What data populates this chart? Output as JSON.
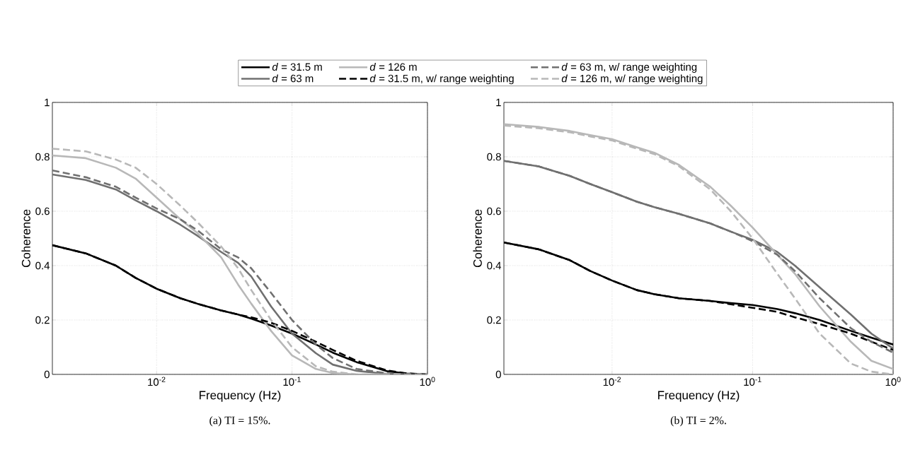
{
  "chart_data": [
    {
      "type": "line",
      "title": "(a) TI = 15%.",
      "xlabel": "Frequency (Hz)",
      "ylabel": "Coherence",
      "log": "x",
      "grid": true,
      "legend": "top",
      "marker": "none",
      "xlim": [
        0.0017,
        1
      ],
      "ylim": [
        0,
        1
      ],
      "xticks": [
        {
          "value": 0.01,
          "label": "10$^{-2}$"
        },
        {
          "value": 0.1,
          "label": "10$^{-1}$"
        },
        {
          "value": 1,
          "label": "10$^{0}$"
        }
      ],
      "yticks": [
        0,
        0.2,
        0.4,
        0.6,
        0.8,
        1
      ],
      "x": [
        0.0017,
        0.003,
        0.005,
        0.007,
        0.01,
        0.015,
        0.02,
        0.03,
        0.04,
        0.05,
        0.07,
        0.1,
        0.15,
        0.2,
        0.3,
        0.5,
        0.7,
        1
      ],
      "series": [
        {
          "name": "*d* = 31.5 m",
          "color": "#000000",
          "line_style": "solid",
          "values": [
            0.475,
            0.445,
            0.4,
            0.355,
            0.315,
            0.28,
            0.26,
            0.235,
            0.22,
            0.205,
            0.18,
            0.15,
            0.11,
            0.08,
            0.045,
            0.012,
            0.003,
            0
          ]
        },
        {
          "name": "*d* = 63 m",
          "color": "#707070",
          "line_style": "solid",
          "values": [
            0.735,
            0.715,
            0.68,
            0.64,
            0.6,
            0.55,
            0.51,
            0.45,
            0.41,
            0.36,
            0.25,
            0.15,
            0.078,
            0.036,
            0.013,
            0.002,
            0,
            0
          ]
        },
        {
          "name": "*d* = 126 m",
          "color": "#b8b8b8",
          "line_style": "solid",
          "values": [
            0.805,
            0.795,
            0.76,
            0.72,
            0.65,
            0.57,
            0.52,
            0.43,
            0.33,
            0.26,
            0.16,
            0.07,
            0.02,
            0.005,
            0,
            0,
            0,
            0
          ]
        },
        {
          "name": "*d* = 31.5 m, w/ range weighting",
          "color": "#000000",
          "line_style": "dashed",
          "values": [
            0.475,
            0.445,
            0.4,
            0.355,
            0.315,
            0.28,
            0.26,
            0.235,
            0.22,
            0.21,
            0.19,
            0.16,
            0.12,
            0.09,
            0.05,
            0.015,
            0.004,
            0
          ]
        },
        {
          "name": "*d* = 63 m, w/ range weighting",
          "color": "#707070",
          "line_style": "dashed",
          "values": [
            0.75,
            0.725,
            0.69,
            0.65,
            0.61,
            0.57,
            0.53,
            0.46,
            0.43,
            0.39,
            0.3,
            0.2,
            0.11,
            0.06,
            0.02,
            0.004,
            0,
            0
          ]
        },
        {
          "name": "*d* = 126 m, w/ range weighting",
          "color": "#b8b8b8",
          "line_style": "dashed",
          "values": [
            0.83,
            0.82,
            0.79,
            0.76,
            0.7,
            0.62,
            0.56,
            0.47,
            0.39,
            0.31,
            0.2,
            0.1,
            0.03,
            0.01,
            0,
            0,
            0,
            0
          ]
        }
      ]
    },
    {
      "type": "line",
      "title": "(b) TI = 2%.",
      "xlabel": "Frequency (Hz)",
      "ylabel": "Coherence",
      "log": "x",
      "grid": true,
      "marker": "none",
      "xlim": [
        0.0017,
        1
      ],
      "ylim": [
        0,
        1
      ],
      "xticks": [
        {
          "value": 0.01,
          "label": "10$^{-2}$"
        },
        {
          "value": 0.1,
          "label": "10$^{-1}$"
        },
        {
          "value": 1,
          "label": "10$^{0}$"
        }
      ],
      "yticks": [
        0,
        0.2,
        0.4,
        0.6,
        0.8,
        1
      ],
      "x": [
        0.0017,
        0.003,
        0.005,
        0.007,
        0.01,
        0.015,
        0.02,
        0.03,
        0.05,
        0.07,
        0.1,
        0.15,
        0.2,
        0.3,
        0.5,
        0.7,
        1
      ],
      "series": [
        {
          "color": "#000000",
          "line_style": "solid",
          "values": [
            0.485,
            0.46,
            0.42,
            0.38,
            0.345,
            0.31,
            0.295,
            0.28,
            0.27,
            0.262,
            0.255,
            0.24,
            0.225,
            0.2,
            0.16,
            0.135,
            0.11
          ]
        },
        {
          "color": "#707070",
          "line_style": "solid",
          "values": [
            0.785,
            0.765,
            0.73,
            0.7,
            0.67,
            0.635,
            0.615,
            0.59,
            0.555,
            0.525,
            0.495,
            0.45,
            0.4,
            0.32,
            0.22,
            0.15,
            0.095
          ]
        },
        {
          "color": "#b8b8b8",
          "line_style": "solid",
          "values": [
            0.92,
            0.91,
            0.895,
            0.88,
            0.865,
            0.835,
            0.815,
            0.77,
            0.69,
            0.62,
            0.54,
            0.44,
            0.37,
            0.25,
            0.12,
            0.05,
            0.02
          ]
        },
        {
          "color": "#000000",
          "line_style": "dashed",
          "values": [
            0.485,
            0.46,
            0.42,
            0.38,
            0.345,
            0.31,
            0.295,
            0.28,
            0.27,
            0.258,
            0.245,
            0.23,
            0.21,
            0.185,
            0.15,
            0.12,
            0.09
          ]
        },
        {
          "color": "#707070",
          "line_style": "dashed",
          "values": [
            0.785,
            0.765,
            0.73,
            0.7,
            0.67,
            0.635,
            0.615,
            0.59,
            0.555,
            0.525,
            0.49,
            0.44,
            0.38,
            0.28,
            0.17,
            0.12,
            0.08
          ]
        },
        {
          "color": "#b8b8b8",
          "line_style": "dashed",
          "values": [
            0.915,
            0.905,
            0.89,
            0.875,
            0.86,
            0.83,
            0.81,
            0.765,
            0.68,
            0.6,
            0.5,
            0.37,
            0.28,
            0.15,
            0.04,
            0.01,
            0
          ]
        }
      ]
    }
  ]
}
